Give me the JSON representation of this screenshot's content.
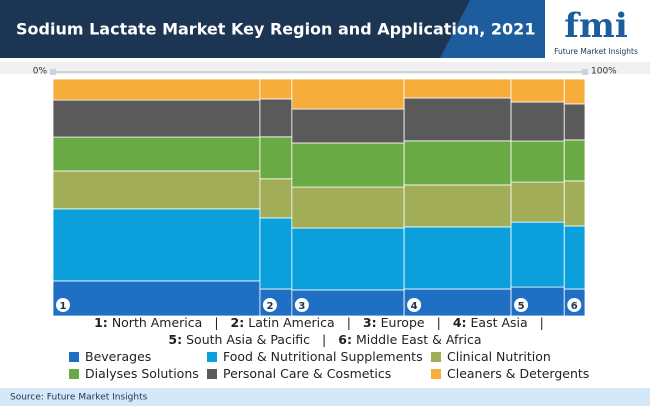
{
  "header": {
    "title": "Sodium Lactate Market Key Region and Application, 2021",
    "logo": "fmi",
    "logo_subtitle": "Future Market Insights"
  },
  "chart_data": {
    "type": "mekko",
    "categories": [
      "North America",
      "Latin America",
      "Europe",
      "East Asia",
      "South Asia & Pacific",
      "Middle East & Africa"
    ],
    "category_markers": [
      "1",
      "2",
      "3",
      "4",
      "5",
      "6"
    ],
    "category_keys": [
      "1:",
      "2:",
      "3:",
      "4:",
      "5:",
      "6:"
    ],
    "separator": "|",
    "widths": [
      38.9,
      6.0,
      21.1,
      20.1,
      10.0,
      3.9
    ],
    "series": [
      {
        "name": "Beverages",
        "color": "#1f6fc5",
        "values": [
          14.8,
          11.4,
          11.0,
          11.4,
          12.2,
          11.4
        ]
      },
      {
        "name": "Food & Nutritional Supplements",
        "color": "#0ba0dc",
        "values": [
          30.4,
          30.0,
          26.1,
          26.2,
          27.4,
          26.6
        ]
      },
      {
        "name": "Clinical Nutrition",
        "color": "#a2ad57",
        "values": [
          16.0,
          16.5,
          17.3,
          17.7,
          16.9,
          19.0
        ]
      },
      {
        "name": "Dialyses Solutions",
        "color": "#6aaa45",
        "values": [
          14.3,
          17.7,
          18.6,
          18.6,
          17.3,
          17.3
        ]
      },
      {
        "name": "Personal Care & Cosmetics",
        "color": "#5a5a5a",
        "values": [
          15.6,
          16.0,
          14.3,
          18.1,
          16.5,
          15.2
        ]
      },
      {
        "name": "Cleaners & Detergents",
        "color": "#f6ad3c",
        "values": [
          8.9,
          8.4,
          12.7,
          8.0,
          9.7,
          10.5
        ]
      }
    ],
    "xlim": [
      0,
      100
    ],
    "xticks": [
      {
        "value": 0,
        "label": "0%"
      },
      {
        "value": 100,
        "label": "100%"
      }
    ],
    "ylim": [
      0,
      100
    ]
  },
  "footer": {
    "source": "Source: Future Market Insights"
  }
}
